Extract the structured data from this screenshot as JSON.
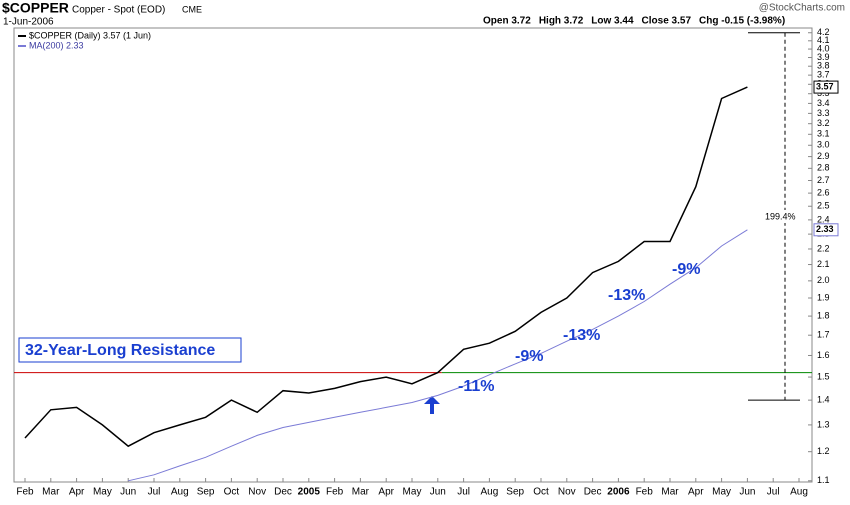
{
  "header": {
    "symbol": "$COPPER",
    "name": "Copper - Spot (EOD)",
    "exchange": "CME",
    "date": "1-Jun-2006",
    "source": "@StockCharts.com",
    "quote": [
      "Open 3.72",
      "High 3.72",
      "Low 3.44",
      "Close 3.57",
      "Chg -0.15 (-3.98%)"
    ]
  },
  "chart_data": {
    "type": "line",
    "log_scale": true,
    "grid": false,
    "x": [
      "2004-02",
      "2004-03",
      "2004-04",
      "2004-05",
      "2004-06",
      "2004-07",
      "2004-08",
      "2004-09",
      "2004-10",
      "2004-11",
      "2004-12",
      "2005-01",
      "2005-02",
      "2005-03",
      "2005-04",
      "2005-05",
      "2005-06",
      "2005-07",
      "2005-08",
      "2005-09",
      "2005-10",
      "2005-11",
      "2005-12",
      "2006-01",
      "2006-02",
      "2006-03",
      "2006-04",
      "2006-05",
      "2006-06"
    ],
    "series": [
      {
        "name": "$COPPER (Daily) 3.57 (1 Jun)",
        "color": "#000000",
        "values": [
          1.25,
          1.36,
          1.37,
          1.3,
          1.22,
          1.27,
          1.3,
          1.33,
          1.4,
          1.35,
          1.44,
          1.43,
          1.45,
          1.48,
          1.5,
          1.47,
          1.52,
          1.63,
          1.66,
          1.72,
          1.82,
          1.9,
          2.05,
          2.12,
          2.25,
          2.25,
          2.65,
          3.45,
          3.57
        ]
      },
      {
        "name": "MA(200) 2.33",
        "color": "#7b7bd6",
        "values": [
          null,
          null,
          null,
          null,
          1.1,
          1.12,
          1.15,
          1.18,
          1.22,
          1.26,
          1.29,
          1.31,
          1.33,
          1.35,
          1.37,
          1.39,
          1.42,
          1.46,
          1.51,
          1.56,
          1.61,
          1.67,
          1.73,
          1.8,
          1.88,
          1.98,
          2.08,
          2.22,
          2.33
        ]
      }
    ],
    "ylim": [
      1.096,
      4.26
    ],
    "yticks": [
      1.1,
      1.2,
      1.3,
      1.4,
      1.5,
      1.6,
      1.7,
      1.8,
      1.9,
      {
        "value": 2,
        "label": "2.0"
      },
      2.1,
      2.2,
      2.3,
      2.4,
      2.5,
      2.6,
      2.7,
      2.8,
      2.9,
      {
        "value": 3,
        "label": "3.0"
      },
      3.1,
      3.2,
      3.3,
      3.4,
      3.5,
      3.6,
      3.7,
      3.8,
      3.9,
      {
        "value": 4,
        "label": "4.0"
      },
      4.1,
      4.2
    ],
    "xticks": [
      {
        "value": "2004-02",
        "label": "Feb"
      },
      {
        "value": "2004-03",
        "label": "Mar"
      },
      {
        "value": "2004-04",
        "label": "Apr"
      },
      {
        "value": "2004-05",
        "label": "May"
      },
      {
        "value": "2004-06",
        "label": "Jun"
      },
      {
        "value": "2004-07",
        "label": "Jul"
      },
      {
        "value": "2004-08",
        "label": "Aug"
      },
      {
        "value": "2004-09",
        "label": "Sep"
      },
      {
        "value": "2004-10",
        "label": "Oct"
      },
      {
        "value": "2004-11",
        "label": "Nov"
      },
      {
        "value": "2004-12",
        "label": "Dec"
      },
      {
        "value": "2005-01",
        "label": "2005"
      },
      {
        "value": "2005-02",
        "label": "Feb"
      },
      {
        "value": "2005-03",
        "label": "Mar"
      },
      {
        "value": "2005-04",
        "label": "Apr"
      },
      {
        "value": "2005-05",
        "label": "May"
      },
      {
        "value": "2005-06",
        "label": "Jun"
      },
      {
        "value": "2005-07",
        "label": "Jul"
      },
      {
        "value": "2005-08",
        "label": "Aug"
      },
      {
        "value": "2005-09",
        "label": "Sep"
      },
      {
        "value": "2005-10",
        "label": "Oct"
      },
      {
        "value": "2005-11",
        "label": "Nov"
      },
      {
        "value": "2005-12",
        "label": "Dec"
      },
      {
        "value": "2006-01",
        "label": "2006"
      },
      {
        "value": "2006-02",
        "label": "Feb"
      },
      {
        "value": "2006-03",
        "label": "Mar"
      },
      {
        "value": "2006-04",
        "label": "Apr"
      },
      {
        "value": "2006-05",
        "label": "May"
      },
      {
        "value": "2006-06",
        "label": "Jun"
      },
      {
        "value": "2006-07",
        "label": "Jul"
      },
      {
        "value": "2006-08",
        "label": "Aug"
      }
    ],
    "resistance": {
      "value": 1.52,
      "label": "32-Year-Long Resistance",
      "colors": [
        "#cc0000",
        "#008800"
      ]
    },
    "measure": {
      "high": 4.2,
      "low": 1.4,
      "label": "199.4%"
    },
    "annotations": [
      "-11%",
      "-9%",
      "-13%",
      "-13%",
      "-9%"
    ]
  }
}
